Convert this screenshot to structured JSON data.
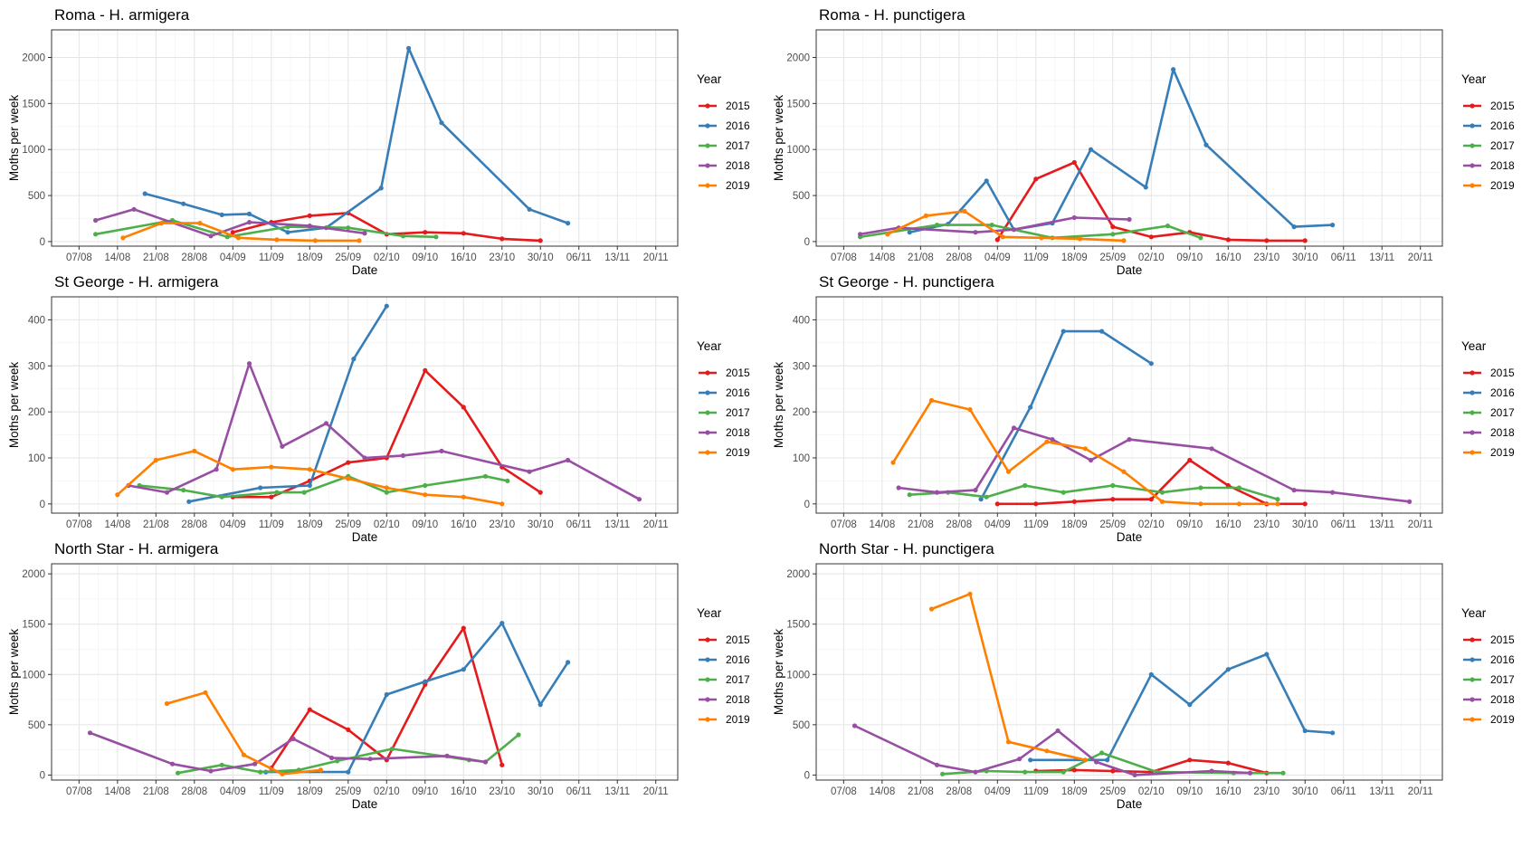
{
  "colors": {
    "2015": "#e41a1c",
    "2016": "#377eb8",
    "2017": "#4daf4a",
    "2018": "#984ea3",
    "2019": "#ff7f00"
  },
  "legend": {
    "title": "Year",
    "items": [
      "2015",
      "2016",
      "2017",
      "2018",
      "2019"
    ]
  },
  "chart_data": [
    {
      "type": "line",
      "title": "Roma - H. armigera",
      "xlabel": "Date",
      "ylabel": "Moths per week",
      "xlim": [
        "2000-08-02",
        "2000-11-24"
      ],
      "ylim": [
        -50,
        2300
      ],
      "x_ticks": [
        "07/08",
        "14/08",
        "21/08",
        "28/08",
        "04/09",
        "11/09",
        "18/09",
        "25/09",
        "02/10",
        "09/10",
        "16/10",
        "23/10",
        "30/10",
        "06/11",
        "13/11",
        "20/11"
      ],
      "y_ticks": [
        0,
        500,
        1000,
        1500,
        2000
      ],
      "series": [
        {
          "name": "2015",
          "x": [
            "2000-09-04",
            "2000-09-11",
            "2000-09-18",
            "2000-09-25",
            "2000-10-02",
            "2000-10-09",
            "2000-10-16",
            "2000-10-23",
            "2000-10-30"
          ],
          "values": [
            100,
            210,
            280,
            310,
            80,
            100,
            90,
            30,
            10
          ]
        },
        {
          "name": "2016",
          "x": [
            "2000-08-19",
            "2000-08-26",
            "2000-09-02",
            "2000-09-07",
            "2000-09-14",
            "2000-09-21",
            "2000-10-01",
            "2000-10-06",
            "2000-10-12",
            "2000-10-28",
            "2000-11-04"
          ],
          "values": [
            520,
            410,
            290,
            300,
            100,
            150,
            580,
            2100,
            1290,
            350,
            200
          ]
        },
        {
          "name": "2017",
          "x": [
            "2000-08-10",
            "2000-08-24",
            "2000-09-03",
            "2000-09-14",
            "2000-09-25",
            "2000-10-05",
            "2000-10-11"
          ],
          "values": [
            80,
            230,
            50,
            160,
            150,
            60,
            50
          ]
        },
        {
          "name": "2018",
          "x": [
            "2000-08-10",
            "2000-08-17",
            "2000-08-31",
            "2000-09-07",
            "2000-09-18",
            "2000-09-28"
          ],
          "values": [
            230,
            350,
            60,
            210,
            170,
            90
          ]
        },
        {
          "name": "2019",
          "x": [
            "2000-08-15",
            "2000-08-22",
            "2000-08-29",
            "2000-09-05",
            "2000-09-12",
            "2000-09-19",
            "2000-09-27"
          ],
          "values": [
            40,
            200,
            200,
            40,
            20,
            10,
            10
          ]
        }
      ]
    },
    {
      "type": "line",
      "title": "Roma - H. punctigera",
      "xlabel": "Date",
      "ylabel": "Moths per week",
      "xlim": [
        "2000-08-02",
        "2000-11-24"
      ],
      "ylim": [
        -50,
        2300
      ],
      "x_ticks": [
        "07/08",
        "14/08",
        "21/08",
        "28/08",
        "04/09",
        "11/09",
        "18/09",
        "25/09",
        "02/10",
        "09/10",
        "16/10",
        "23/10",
        "30/10",
        "06/11",
        "13/11",
        "20/11"
      ],
      "y_ticks": [
        0,
        500,
        1000,
        1500,
        2000
      ],
      "series": [
        {
          "name": "2015",
          "x": [
            "2000-09-04",
            "2000-09-11",
            "2000-09-18",
            "2000-09-25",
            "2000-10-02",
            "2000-10-09",
            "2000-10-16",
            "2000-10-23",
            "2000-10-30"
          ],
          "values": [
            20,
            680,
            860,
            160,
            50,
            100,
            20,
            10,
            10
          ]
        },
        {
          "name": "2016",
          "x": [
            "2000-08-19",
            "2000-08-26",
            "2000-09-02",
            "2000-09-07",
            "2000-09-14",
            "2000-09-21",
            "2000-10-01",
            "2000-10-06",
            "2000-10-12",
            "2000-10-28",
            "2000-11-04"
          ],
          "values": [
            100,
            190,
            660,
            130,
            200,
            1000,
            590,
            1870,
            1050,
            160,
            180
          ]
        },
        {
          "name": "2017",
          "x": [
            "2000-08-10",
            "2000-08-24",
            "2000-09-03",
            "2000-09-14",
            "2000-09-25",
            "2000-10-05",
            "2000-10-11"
          ],
          "values": [
            50,
            180,
            180,
            40,
            80,
            170,
            40
          ]
        },
        {
          "name": "2018",
          "x": [
            "2000-08-10",
            "2000-08-17",
            "2000-08-31",
            "2000-09-07",
            "2000-09-18",
            "2000-09-28"
          ],
          "values": [
            80,
            150,
            100,
            130,
            260,
            240
          ]
        },
        {
          "name": "2019",
          "x": [
            "2000-08-15",
            "2000-08-22",
            "2000-08-29",
            "2000-09-05",
            "2000-09-12",
            "2000-09-19",
            "2000-09-27"
          ],
          "values": [
            80,
            280,
            330,
            50,
            40,
            30,
            10
          ]
        }
      ]
    },
    {
      "type": "line",
      "title": "St George - H. armigera",
      "xlabel": "Date",
      "ylabel": "Moths per week",
      "xlim": [
        "2000-08-02",
        "2000-11-24"
      ],
      "ylim": [
        -20,
        450
      ],
      "x_ticks": [
        "07/08",
        "14/08",
        "21/08",
        "28/08",
        "04/09",
        "11/09",
        "18/09",
        "25/09",
        "02/10",
        "09/10",
        "16/10",
        "23/10",
        "30/10",
        "06/11",
        "13/11",
        "20/11"
      ],
      "y_ticks": [
        0,
        100,
        200,
        300,
        400
      ],
      "series": [
        {
          "name": "2015",
          "x": [
            "2000-09-04",
            "2000-09-11",
            "2000-09-18",
            "2000-09-25",
            "2000-10-02",
            "2000-10-09",
            "2000-10-16",
            "2000-10-23",
            "2000-10-30"
          ],
          "values": [
            15,
            15,
            50,
            90,
            100,
            290,
            210,
            80,
            25
          ]
        },
        {
          "name": "2016",
          "x": [
            "2000-08-27",
            "2000-09-09",
            "2000-09-18",
            "2000-09-26",
            "2000-10-02"
          ],
          "values": [
            5,
            35,
            40,
            315,
            430
          ]
        },
        {
          "name": "2017",
          "x": [
            "2000-08-18",
            "2000-08-26",
            "2000-09-02",
            "2000-09-12",
            "2000-09-17",
            "2000-09-25",
            "2000-10-02",
            "2000-10-09",
            "2000-10-20",
            "2000-10-24"
          ],
          "values": [
            40,
            30,
            15,
            25,
            25,
            60,
            25,
            40,
            60,
            50
          ]
        },
        {
          "name": "2018",
          "x": [
            "2000-08-16",
            "2000-08-23",
            "2000-09-01",
            "2000-09-07",
            "2000-09-13",
            "2000-09-21",
            "2000-09-28",
            "2000-10-05",
            "2000-10-12",
            "2000-10-28",
            "2000-11-04",
            "2000-11-17"
          ],
          "values": [
            40,
            25,
            75,
            305,
            125,
            175,
            100,
            105,
            115,
            70,
            95,
            10
          ]
        },
        {
          "name": "2019",
          "x": [
            "2000-08-14",
            "2000-08-21",
            "2000-08-28",
            "2000-09-04",
            "2000-09-11",
            "2000-09-18",
            "2000-09-25",
            "2000-10-02",
            "2000-10-09",
            "2000-10-16",
            "2000-10-23"
          ],
          "values": [
            20,
            95,
            115,
            75,
            80,
            75,
            55,
            35,
            20,
            15,
            0
          ]
        }
      ]
    },
    {
      "type": "line",
      "title": "St George - H. punctigera",
      "xlabel": "Date",
      "ylabel": "Moths per week",
      "xlim": [
        "2000-08-02",
        "2000-11-24"
      ],
      "ylim": [
        -20,
        450
      ],
      "x_ticks": [
        "07/08",
        "14/08",
        "21/08",
        "28/08",
        "04/09",
        "11/09",
        "18/09",
        "25/09",
        "02/10",
        "09/10",
        "16/10",
        "23/10",
        "30/10",
        "06/11",
        "13/11",
        "20/11"
      ],
      "y_ticks": [
        0,
        100,
        200,
        300,
        400
      ],
      "series": [
        {
          "name": "2015",
          "x": [
            "2000-09-04",
            "2000-09-11",
            "2000-09-18",
            "2000-09-25",
            "2000-10-02",
            "2000-10-09",
            "2000-10-16",
            "2000-10-23",
            "2000-10-30"
          ],
          "values": [
            0,
            0,
            5,
            10,
            10,
            95,
            40,
            0,
            0
          ]
        },
        {
          "name": "2016",
          "x": [
            "2000-09-01",
            "2000-09-10",
            "2000-09-16",
            "2000-09-23",
            "2000-10-02"
          ],
          "values": [
            10,
            210,
            375,
            375,
            305
          ]
        },
        {
          "name": "2017",
          "x": [
            "2000-08-19",
            "2000-08-26",
            "2000-09-02",
            "2000-09-09",
            "2000-09-16",
            "2000-09-25",
            "2000-10-04",
            "2000-10-11",
            "2000-10-18",
            "2000-10-25"
          ],
          "values": [
            20,
            25,
            15,
            40,
            25,
            40,
            25,
            35,
            35,
            10
          ]
        },
        {
          "name": "2018",
          "x": [
            "2000-08-17",
            "2000-08-24",
            "2000-08-31",
            "2000-09-07",
            "2000-09-14",
            "2000-09-21",
            "2000-09-28",
            "2000-10-13",
            "2000-10-28",
            "2000-11-04",
            "2000-11-18"
          ],
          "values": [
            35,
            25,
            30,
            165,
            140,
            95,
            140,
            120,
            30,
            25,
            5
          ]
        },
        {
          "name": "2019",
          "x": [
            "2000-08-16",
            "2000-08-23",
            "2000-08-30",
            "2000-09-06",
            "2000-09-13",
            "2000-09-20",
            "2000-09-27",
            "2000-10-04",
            "2000-10-11",
            "2000-10-18",
            "2000-10-25"
          ],
          "values": [
            90,
            225,
            205,
            70,
            135,
            120,
            70,
            5,
            0,
            0,
            0
          ]
        }
      ]
    },
    {
      "type": "line",
      "title": "North Star - H. armigera",
      "xlabel": "Date",
      "ylabel": "Moths per week",
      "xlim": [
        "2000-08-02",
        "2000-11-24"
      ],
      "ylim": [
        -50,
        2100
      ],
      "x_ticks": [
        "07/08",
        "14/08",
        "21/08",
        "28/08",
        "04/09",
        "11/09",
        "18/09",
        "25/09",
        "02/10",
        "09/10",
        "16/10",
        "23/10",
        "30/10",
        "06/11",
        "13/11",
        "20/11"
      ],
      "y_ticks": [
        0,
        500,
        1000,
        1500,
        2000
      ],
      "series": [
        {
          "name": "2015",
          "x": [
            "2000-09-11",
            "2000-09-18",
            "2000-09-25",
            "2000-10-02",
            "2000-10-09",
            "2000-10-16",
            "2000-10-23"
          ],
          "values": [
            70,
            650,
            450,
            150,
            900,
            1460,
            100
          ]
        },
        {
          "name": "2016",
          "x": [
            "2000-09-10",
            "2000-09-25",
            "2000-10-02",
            "2000-10-09",
            "2000-10-16",
            "2000-10-23",
            "2000-10-30",
            "2000-11-04"
          ],
          "values": [
            30,
            30,
            800,
            930,
            1050,
            1510,
            700,
            1120
          ]
        },
        {
          "name": "2017",
          "x": [
            "2000-08-25",
            "2000-09-02",
            "2000-09-09",
            "2000-09-16",
            "2000-09-23",
            "2000-10-03",
            "2000-10-17",
            "2000-10-20",
            "2000-10-26"
          ],
          "values": [
            20,
            100,
            30,
            50,
            140,
            260,
            150,
            130,
            400
          ]
        },
        {
          "name": "2018",
          "x": [
            "2000-08-09",
            "2000-08-24",
            "2000-08-31",
            "2000-09-08",
            "2000-09-15",
            "2000-09-22",
            "2000-09-29",
            "2000-10-13",
            "2000-10-20"
          ],
          "values": [
            420,
            110,
            40,
            110,
            360,
            170,
            160,
            190,
            130
          ]
        },
        {
          "name": "2019",
          "x": [
            "2000-08-23",
            "2000-08-30",
            "2000-09-06",
            "2000-09-13",
            "2000-09-20"
          ],
          "values": [
            710,
            820,
            200,
            10,
            50
          ]
        }
      ]
    },
    {
      "type": "line",
      "title": "North Star - H. punctigera",
      "xlabel": "Date",
      "ylabel": "Moths per week",
      "xlim": [
        "2000-08-02",
        "2000-11-24"
      ],
      "ylim": [
        -50,
        2100
      ],
      "x_ticks": [
        "07/08",
        "14/08",
        "21/08",
        "28/08",
        "04/09",
        "11/09",
        "18/09",
        "25/09",
        "02/10",
        "09/10",
        "16/10",
        "23/10",
        "30/10",
        "06/11",
        "13/11",
        "20/11"
      ],
      "y_ticks": [
        0,
        500,
        1000,
        1500,
        2000
      ],
      "series": [
        {
          "name": "2015",
          "x": [
            "2000-09-11",
            "2000-09-18",
            "2000-09-25",
            "2000-10-02",
            "2000-10-09",
            "2000-10-16",
            "2000-10-23"
          ],
          "values": [
            40,
            50,
            40,
            30,
            150,
            120,
            20
          ]
        },
        {
          "name": "2016",
          "x": [
            "2000-09-10",
            "2000-09-24",
            "2000-10-02",
            "2000-10-09",
            "2000-10-16",
            "2000-10-23",
            "2000-10-30",
            "2000-11-04"
          ],
          "values": [
            150,
            150,
            1000,
            700,
            1050,
            1200,
            440,
            420
          ]
        },
        {
          "name": "2017",
          "x": [
            "2000-08-25",
            "2000-09-02",
            "2000-09-09",
            "2000-09-16",
            "2000-09-23",
            "2000-10-03",
            "2000-10-17",
            "2000-10-20",
            "2000-10-26"
          ],
          "values": [
            10,
            40,
            30,
            30,
            220,
            30,
            20,
            20,
            20
          ]
        },
        {
          "name": "2018",
          "x": [
            "2000-08-09",
            "2000-08-24",
            "2000-08-31",
            "2000-09-08",
            "2000-09-15",
            "2000-09-22",
            "2000-09-29",
            "2000-10-13",
            "2000-10-20"
          ],
          "values": [
            490,
            100,
            30,
            160,
            440,
            130,
            0,
            40,
            20
          ]
        },
        {
          "name": "2019",
          "x": [
            "2000-08-23",
            "2000-08-30",
            "2000-09-06",
            "2000-09-13",
            "2000-09-20"
          ],
          "values": [
            1650,
            1800,
            330,
            240,
            150
          ]
        }
      ]
    }
  ]
}
